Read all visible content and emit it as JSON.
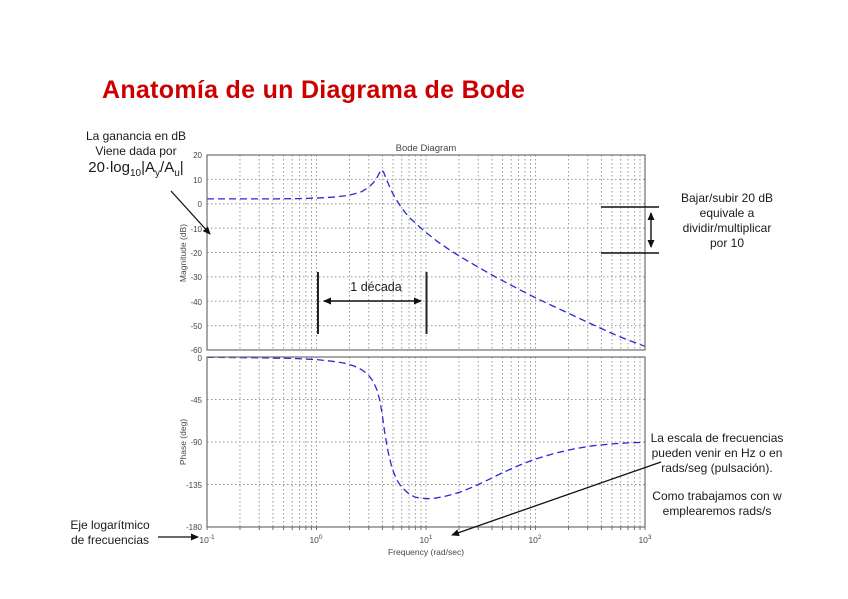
{
  "slide": {
    "title": "Anatomía de un Diagrama de Bode"
  },
  "annotations": {
    "gain_note": {
      "line1": "La ganancia en dB",
      "line2": "Viene dada por",
      "formula": {
        "p1": "20·log",
        "s1": "10",
        "p2": "|A",
        "s2": "y",
        "p3": "/A",
        "s3": "u",
        "p4": "|"
      }
    },
    "decade_label": "1 década",
    "gain_step_note": {
      "line1": "Bajar/subir 20 dB",
      "line2": "equivale a",
      "line3": "dividir/multiplicar",
      "line4": "por 10"
    },
    "freq_scale_note": {
      "para1": [
        "La escala de frecuencias",
        "pueden venir en Hz o en",
        "rads/seg (pulsación)."
      ],
      "para2": [
        "Como trabajamos con w",
        "emplearemos rads/s"
      ]
    },
    "log_axis_note": {
      "line1": "Eje logarítmico",
      "line2": "de frecuencias"
    }
  },
  "chart_data": {
    "type": "line",
    "title": "Bode Diagram",
    "xlabel": "Frequency (rad/sec)",
    "x_scale": "log",
    "xlim": [
      0.1,
      1000
    ],
    "grid": true,
    "curve_color": "#2a2ad0",
    "line_style": "dashed",
    "xtick_values": [
      0.1,
      1,
      10,
      100,
      1000
    ],
    "xtick_labels": [
      {
        "base": "10",
        "exp": "-1"
      },
      {
        "base": "10",
        "exp": "0"
      },
      {
        "base": "10",
        "exp": "1"
      },
      {
        "base": "10",
        "exp": "2"
      },
      {
        "base": "10",
        "exp": "3"
      }
    ],
    "subplots": [
      {
        "name": "magnitude",
        "ylabel": "Magnitude (dB)",
        "ylim": [
          -60,
          20
        ],
        "yticks": [
          "20",
          "10",
          "0",
          "-10",
          "-20",
          "-30",
          "-40",
          "-50",
          "-60"
        ],
        "ytick_values": [
          20,
          10,
          0,
          -10,
          -20,
          -30,
          -40,
          -50,
          -60
        ],
        "series": [
          {
            "name": "gain",
            "x": [
              0.1,
              0.2,
              0.4,
              0.7,
              1,
              1.4,
              1.8,
              2.2,
              2.6,
              3,
              3.3,
              3.6,
              3.9,
              4.1,
              4.4,
              4.8,
              5.3,
              6,
              7,
              8.5,
              10,
              13,
              17,
              22,
              30,
              45,
              70,
              100,
              150,
              220,
              330,
              500,
              700,
              1000
            ],
            "y": [
              2,
              2,
              2,
              2.1,
              2.3,
              2.7,
              3.2,
              4,
              5,
              6.8,
              8.6,
              11,
              14,
              13,
              9.5,
              5.5,
              2,
              -1.8,
              -5.5,
              -9,
              -11.8,
              -15.8,
              -19.4,
              -22.5,
              -26,
              -30.5,
              -35,
              -38.6,
              -42.3,
              -45.8,
              -49.5,
              -53.2,
              -55.9,
              -58.5
            ]
          }
        ]
      },
      {
        "name": "phase",
        "ylabel": "Phase (deg)",
        "ylim": [
          -180,
          0
        ],
        "yticks": [
          "0",
          "-45",
          "-90",
          "-135",
          "-180"
        ],
        "ytick_values": [
          0,
          -45,
          -90,
          -135,
          -180
        ],
        "series": [
          {
            "name": "phase",
            "x": [
              0.1,
              0.3,
              0.6,
              1,
              1.4,
              1.8,
              2.2,
              2.6,
              3,
              3.3,
              3.6,
              3.8,
              4,
              4.2,
              4.5,
              4.9,
              5.4,
              6,
              7,
              8,
              10,
              12,
              15,
              20,
              27,
              37,
              50,
              70,
              100,
              150,
              220,
              330,
              500,
              700,
              1000
            ],
            "y": [
              -0.3,
              -0.8,
              -1.5,
              -2.8,
              -4.5,
              -6.5,
              -9.5,
              -13.5,
              -19.5,
              -26,
              -36,
              -47,
              -62,
              -80,
              -100,
              -118,
              -130,
              -138,
              -145,
              -148.5,
              -150,
              -149.5,
              -147.5,
              -143.5,
              -137.5,
              -130,
              -122.5,
              -115,
              -108,
              -102,
              -97.5,
              -94,
              -92,
              -91,
              -90.3
            ]
          }
        ]
      }
    ]
  }
}
